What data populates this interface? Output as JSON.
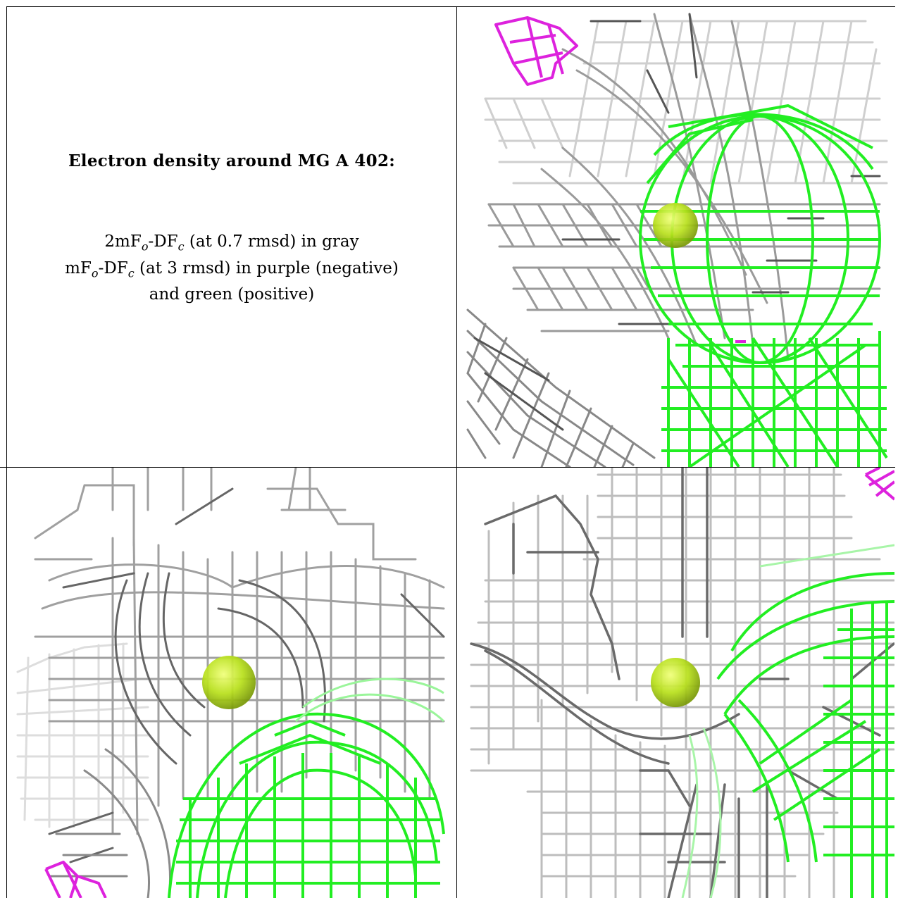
{
  "caption": {
    "title": "Electron density around MG A 402:",
    "line1_a": "2mF",
    "line1_sub_o": "o",
    "line1_b": "-DF",
    "line1_sub_c": "c",
    "line1_c": " (at 0.7 rmsd) in gray",
    "line2_a": "mF",
    "line2_sub_o": "o",
    "line2_b": "-DF",
    "line2_sub_c": "c",
    "line2_c": " (at 3 rmsd) in purple (negative)",
    "line3": "and green (positive)"
  },
  "colors": {
    "gray_mesh": "#8a8a8a",
    "light_gray_mesh": "#cfcfcf",
    "dark_gray_mesh": "#555555",
    "green_mesh": "#22ee22",
    "purple_mesh": "#dd22dd",
    "ion_sphere": "#b8e01c"
  },
  "panels": [
    {
      "name": "view-top-right",
      "ion": "MG A 402"
    },
    {
      "name": "view-bottom-left",
      "ion": "MG A 402"
    },
    {
      "name": "view-bottom-right",
      "ion": "MG A 402"
    }
  ]
}
